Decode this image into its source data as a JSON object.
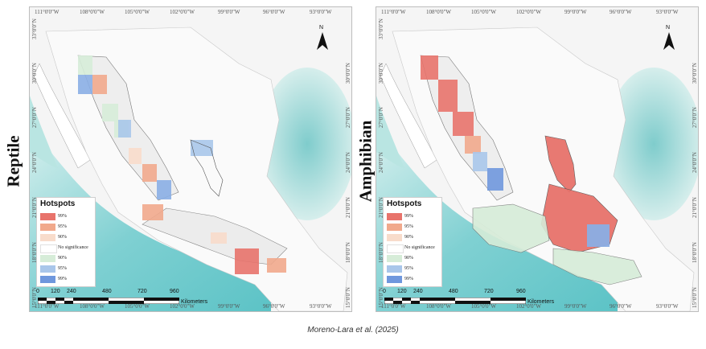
{
  "panels": [
    {
      "id": "reptile",
      "side_title": "Reptile",
      "legend": {
        "title": "Hotspots",
        "items": [
          {
            "label": "99%",
            "color": "#e8736b"
          },
          {
            "label": "95%",
            "color": "#f1a98c"
          },
          {
            "label": "90%",
            "color": "#f8dccb"
          },
          {
            "label": "No significance",
            "color": "#ffffff"
          },
          {
            "label": "90%",
            "color": "#d6ecd8"
          },
          {
            "label": "95%",
            "color": "#a9c6ea"
          },
          {
            "label": "99%",
            "color": "#6f97dd"
          }
        ]
      }
    },
    {
      "id": "amphibian",
      "side_title": "Amphibian",
      "legend": {
        "title": "Hotspots",
        "items": [
          {
            "label": "99%",
            "color": "#e8736b"
          },
          {
            "label": "95%",
            "color": "#f1a98c"
          },
          {
            "label": "90%",
            "color": "#f8dccb"
          },
          {
            "label": "No significance",
            "color": "#ffffff"
          },
          {
            "label": "90%",
            "color": "#d6ecd8"
          },
          {
            "label": "95%",
            "color": "#a9c6ea"
          },
          {
            "label": "99%",
            "color": "#6f97dd"
          }
        ]
      }
    }
  ],
  "axes": {
    "longitude_labels": [
      "111°0'0\"W",
      "108°0'0\"W",
      "105°0'0\"W",
      "102°0'0\"W",
      "99°0'0\"W",
      "96°0'0\"W",
      "93°0'0\"W"
    ],
    "latitude_labels": [
      "33°0'0\"N",
      "30°0'0\"N",
      "27°0'0\"N",
      "24°0'0\"N",
      "21°0'0\"N",
      "18°0'0\"N",
      "15°0'0\"N"
    ]
  },
  "scalebar": {
    "ticks": [
      "0",
      "120",
      "240",
      "480",
      "720",
      "960"
    ],
    "unit": "Kilometers"
  },
  "north_label": "N",
  "credit": "Moreno-Lara et al. (2025)",
  "colors": {
    "ocean_deep": "#7ccfd0",
    "ocean_shallow": "#bfe6e4",
    "land": "#f3f3f3",
    "gulf": "#a8dcd8"
  }
}
